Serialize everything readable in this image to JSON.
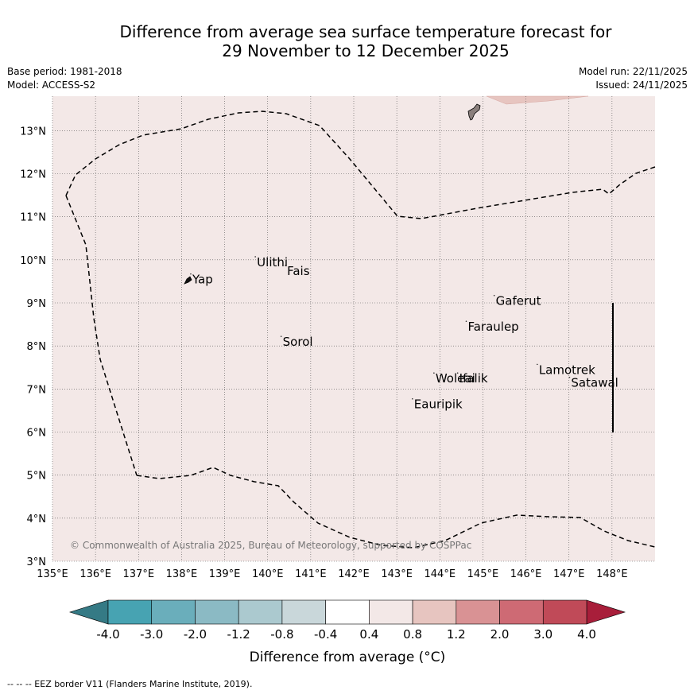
{
  "title": {
    "line1": "Difference from average sea surface temperature forecast for",
    "line2": "29 November to 12 December 2025"
  },
  "meta": {
    "base_period": "Base period: 1981-2018",
    "model": "Model: ACCESS-S2",
    "model_run": "Model run: 22/11/2025",
    "issued": "Issued: 24/11/2025"
  },
  "map": {
    "lon_range": [
      135,
      149
    ],
    "lat_range": [
      3,
      13.8
    ],
    "x_ticks": [
      "135°E",
      "136°E",
      "137°E",
      "138°E",
      "139°E",
      "140°E",
      "141°E",
      "142°E",
      "143°E",
      "144°E",
      "145°E",
      "146°E",
      "147°E",
      "148°E"
    ],
    "y_ticks": [
      "3°N",
      "4°N",
      "5°N",
      "6°N",
      "7°N",
      "8°N",
      "9°N",
      "10°N",
      "11°N",
      "12°N",
      "13°N"
    ],
    "background_color": "#f3e8e7",
    "places": [
      {
        "name": "Yap",
        "lon": 138.25,
        "lat": 9.45
      },
      {
        "name": "Ulithi",
        "lon": 139.75,
        "lat": 9.85
      },
      {
        "name": "Fais",
        "lon": 140.45,
        "lat": 9.65
      },
      {
        "name": "Gaferut",
        "lon": 145.3,
        "lat": 8.95
      },
      {
        "name": "Faraulep",
        "lon": 144.65,
        "lat": 8.35
      },
      {
        "name": "Sorol",
        "lon": 140.35,
        "lat": 8.0
      },
      {
        "name": "Woleai",
        "lon": 143.9,
        "lat": 7.15
      },
      {
        "name": "Ifalik",
        "lon": 144.45,
        "lat": 7.15
      },
      {
        "name": "Lamotrek",
        "lon": 146.3,
        "lat": 7.35
      },
      {
        "name": "Satawal",
        "lon": 147.05,
        "lat": 7.05
      },
      {
        "name": "Eauripik",
        "lon": 143.4,
        "lat": 6.55
      }
    ],
    "copyright": "© Commonwealth of Australia 2025, Bureau of Meteorology, supported by COSPPac"
  },
  "colorbar": {
    "labels": [
      "-4.0",
      "-3.0",
      "-2.0",
      "-1.2",
      "-0.8",
      "-0.4",
      "0.4",
      "0.8",
      "1.2",
      "2.0",
      "3.0",
      "4.0"
    ],
    "colors": [
      "#47a3b2",
      "#6aaebb",
      "#8bbac4",
      "#abc9cf",
      "#c9d7da",
      "#ffffff",
      "#f3e8e7",
      "#e7c5c0",
      "#d99294",
      "#ce6a74",
      "#c04a58"
    ],
    "under_color": "#357a85",
    "over_color": "#a81e3a",
    "title": "Difference from average (°C)"
  },
  "footer": "--  --  -- EEZ border V11 (Flanders Marine Institute, 2019)."
}
